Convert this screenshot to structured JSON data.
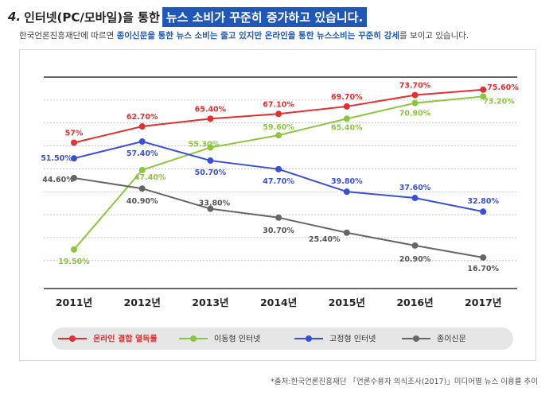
{
  "header": {
    "number": "4.",
    "title_plain": "인터넷(PC/모바일)을 통한",
    "title_highlight": "뉴스 소비가 꾸준히 증가하고 있습니다.",
    "subtitle_a": "한국언론진흥재단에 따르면 ",
    "subtitle_b": "종이신문을 통한 뉴스 소비는 줄고 있지만 온라인을 통한 뉴스소비는 꾸준히 강세",
    "subtitle_c": "를 보이고 있습니다."
  },
  "chart_data": {
    "type": "line",
    "categories": [
      "2011년",
      "2012년",
      "2013년",
      "2014년",
      "2015년",
      "2016년",
      "2017년"
    ],
    "series": [
      {
        "name": "온라인 결합 열독률",
        "color": "#e03030",
        "values": [
          57,
          62.7,
          65.4,
          67.1,
          69.7,
          73.7,
          75.6
        ],
        "labels": [
          "57%",
          "62.70%",
          "65.40%",
          "67.10%",
          "69.70%",
          "73.70%",
          "75.60%"
        ]
      },
      {
        "name": "이동형 인터넷",
        "color": "#8cc63f",
        "values": [
          19.5,
          47.4,
          55.3,
          59.6,
          65.4,
          70.9,
          73.2
        ],
        "labels": [
          "19.50%",
          "47.40%",
          "55.30%",
          "59.60%",
          "65.40%",
          "70.90%",
          "73.20%"
        ]
      },
      {
        "name": "고정형 인터넷",
        "color": "#3a4fd8",
        "values": [
          51.5,
          57.4,
          50.7,
          47.7,
          39.8,
          37.6,
          32.8
        ],
        "labels": [
          "51.50%",
          "57.40%",
          "50.70%",
          "47.70%",
          "39.80%",
          "37.60%",
          "32.80%"
        ]
      },
      {
        "name": "종이신문",
        "color": "#666666",
        "values": [
          44.6,
          40.9,
          33.8,
          30.7,
          25.4,
          20.9,
          16.7
        ],
        "labels": [
          "44.60%",
          "40.90%",
          "33.80%",
          "30.70%",
          "25.40%",
          "20.90%",
          "16.70%"
        ]
      }
    ],
    "ylim": [
      10,
      80
    ],
    "grid": true,
    "legend": "bottom"
  },
  "source": "*출처:한국언론진흥재단 「언론수용자 의식조사(2017)」미디어별 뉴스 이용률 추이"
}
